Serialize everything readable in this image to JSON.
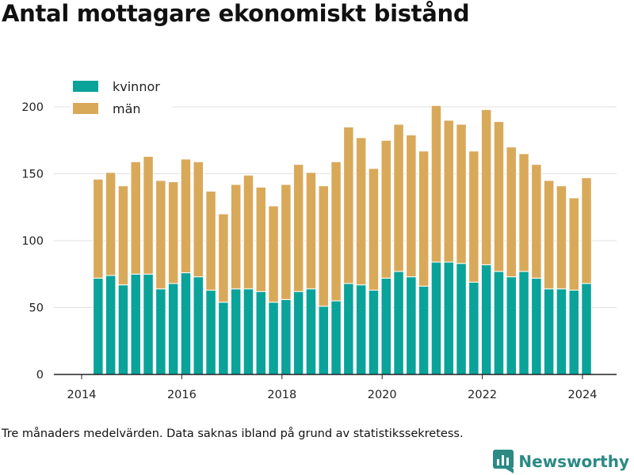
{
  "title": "Antal mottagare ekonomiskt bistånd",
  "footnote": "Tre månaders medelvärden. Data saknas ibland på grund av statistikssekretess.",
  "brand": {
    "name": "Newsworthy"
  },
  "colors": {
    "kvinnor": "#0aa39a",
    "man": "#d9a95a",
    "grid": "#e0e0e0",
    "axis": "#222222"
  },
  "chart_data": {
    "type": "bar",
    "stacked": true,
    "x_axis": {
      "min": 2013.5,
      "max": 2024.75,
      "ticks": [
        2014,
        2016,
        2018,
        2020,
        2022,
        2024
      ]
    },
    "y_axis": {
      "min": 0,
      "max": 210,
      "ticks": [
        0,
        50,
        100,
        150,
        200
      ]
    },
    "grid": true,
    "legend_position": "top-left",
    "x": [
      2014.33,
      2014.58,
      2014.83,
      2015.08,
      2015.33,
      2015.58,
      2015.83,
      2016.08,
      2016.33,
      2016.58,
      2016.83,
      2017.08,
      2017.33,
      2017.58,
      2017.83,
      2018.08,
      2018.33,
      2018.58,
      2018.83,
      2019.08,
      2019.33,
      2019.58,
      2019.83,
      2020.08,
      2020.33,
      2020.58,
      2020.83,
      2021.08,
      2021.33,
      2021.58,
      2021.83,
      2022.08,
      2022.33,
      2022.58,
      2022.83,
      2023.08,
      2023.33,
      2023.58,
      2023.83,
      2024.08
    ],
    "series": [
      {
        "name": "kvinnor",
        "values": [
          72,
          74,
          67,
          75,
          75,
          64,
          68,
          76,
          73,
          63,
          54,
          64,
          64,
          62,
          54,
          56,
          62,
          64,
          51,
          55,
          68,
          67,
          63,
          72,
          77,
          73,
          66,
          84,
          84,
          83,
          69,
          82,
          77,
          73,
          77,
          72,
          64,
          64,
          63,
          68
        ]
      },
      {
        "name": "män",
        "values": [
          74,
          77,
          74,
          84,
          88,
          81,
          76,
          85,
          86,
          74,
          66,
          78,
          85,
          78,
          72,
          86,
          95,
          87,
          90,
          104,
          117,
          110,
          91,
          103,
          110,
          106,
          101,
          117,
          106,
          104,
          98,
          116,
          112,
          97,
          88,
          85,
          81,
          77,
          69,
          79
        ]
      }
    ]
  }
}
